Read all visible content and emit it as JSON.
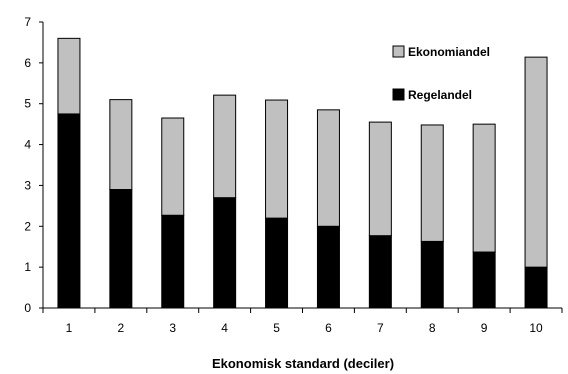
{
  "chart_data": {
    "type": "bar",
    "stacked": true,
    "categories": [
      "1",
      "2",
      "3",
      "4",
      "5",
      "6",
      "7",
      "8",
      "9",
      "10"
    ],
    "series": [
      {
        "name": "Regelandel",
        "values": [
          4.75,
          2.9,
          2.27,
          2.7,
          2.2,
          2.0,
          1.77,
          1.63,
          1.37,
          1.0
        ],
        "color": "#000000"
      },
      {
        "name": "Ekonomiandel",
        "values": [
          1.85,
          2.2,
          2.38,
          2.51,
          2.89,
          2.85,
          2.78,
          2.85,
          3.13,
          5.14
        ],
        "color": "#c0c0c0"
      }
    ],
    "title": "",
    "xlabel": "Ekonomisk standard (deciler)",
    "ylabel": "",
    "ylim": [
      0,
      7
    ],
    "yticks": [
      "0",
      "1",
      "2",
      "3",
      "4",
      "5",
      "6",
      "7"
    ],
    "grid": false,
    "legend_position": "top-right"
  }
}
